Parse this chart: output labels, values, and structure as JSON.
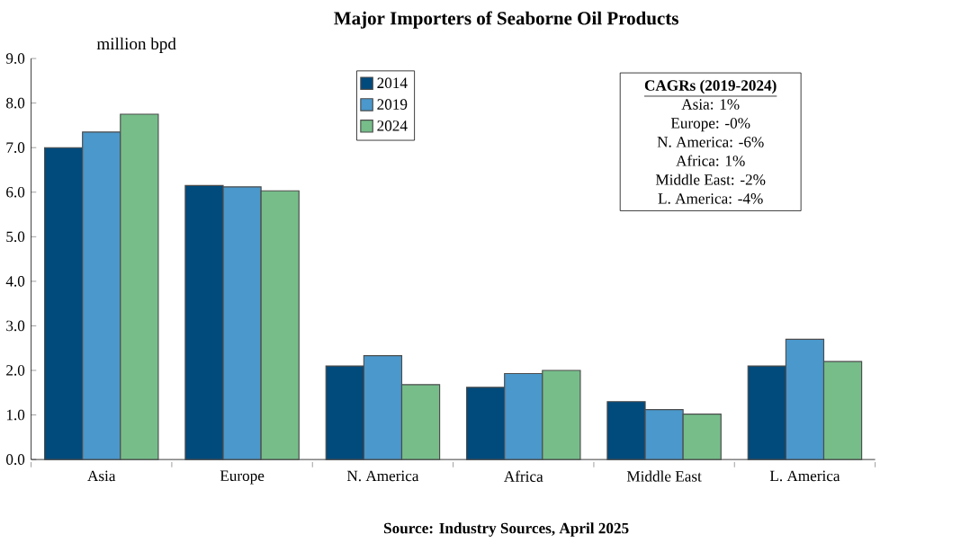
{
  "chart_data": {
    "type": "bar",
    "title": "Major Importers of Seaborne Oil Products",
    "ylabel": "million bpd",
    "categories": [
      "Asia",
      "Europe",
      "N. America",
      "Africa",
      "Middle East",
      "L. America"
    ],
    "series": [
      {
        "name": "2014",
        "color": "#004a7c",
        "values": [
          7.0,
          6.15,
          2.1,
          1.62,
          1.3,
          2.1
        ]
      },
      {
        "name": "2019",
        "color": "#4a98cc",
        "values": [
          7.35,
          6.12,
          2.33,
          1.93,
          1.12,
          2.7
        ]
      },
      {
        "name": "2024",
        "color": "#76bd8a",
        "values": [
          7.75,
          6.03,
          1.68,
          2.0,
          1.02,
          2.2
        ]
      }
    ],
    "ylim": [
      0,
      9
    ],
    "yticks": [
      {
        "value": 0,
        "label": "0.0"
      },
      {
        "value": 1,
        "label": "1.0"
      },
      {
        "value": 2,
        "label": "2.0"
      },
      {
        "value": 3,
        "label": "3.0"
      },
      {
        "value": 4,
        "label": "4.0"
      },
      {
        "value": 5,
        "label": "5.0"
      },
      {
        "value": 6,
        "label": "6.0"
      },
      {
        "value": 7,
        "label": "7.0"
      },
      {
        "value": 8,
        "label": "8.0"
      },
      {
        "value": 9,
        "label": "9.0"
      }
    ],
    "legend": "top",
    "annotations": [
      "CAGRs (2019-2024)",
      "Asia: 1%",
      "Europe: -0%",
      "N. America: -6%",
      "Africa: 1%",
      "Middle East: -2%",
      "L. America: -4%",
      "Source: Industry Sources, April 2025"
    ]
  }
}
